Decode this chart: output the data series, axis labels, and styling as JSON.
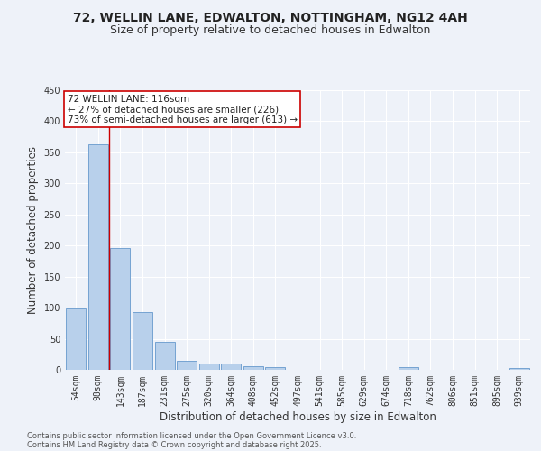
{
  "title1": "72, WELLIN LANE, EDWALTON, NOTTINGHAM, NG12 4AH",
  "title2": "Size of property relative to detached houses in Edwalton",
  "xlabel": "Distribution of detached houses by size in Edwalton",
  "ylabel": "Number of detached properties",
  "categories": [
    "54sqm",
    "98sqm",
    "143sqm",
    "187sqm",
    "231sqm",
    "275sqm",
    "320sqm",
    "364sqm",
    "408sqm",
    "452sqm",
    "497sqm",
    "541sqm",
    "585sqm",
    "629sqm",
    "674sqm",
    "718sqm",
    "762sqm",
    "806sqm",
    "851sqm",
    "895sqm",
    "939sqm"
  ],
  "values": [
    99,
    363,
    196,
    93,
    45,
    14,
    10,
    10,
    6,
    5,
    0,
    0,
    0,
    0,
    0,
    5,
    0,
    0,
    0,
    0,
    3
  ],
  "bar_color": "#b8d0eb",
  "bar_edge_color": "#6699cc",
  "vline_x": 1.5,
  "vline_color": "#cc0000",
  "annotation_line1": "72 WELLIN LANE: 116sqm",
  "annotation_line2": "← 27% of detached houses are smaller (226)",
  "annotation_line3": "73% of semi-detached houses are larger (613) →",
  "annotation_box_color": "#ffffff",
  "annotation_box_edge": "#cc0000",
  "ylim": [
    0,
    450
  ],
  "yticks": [
    0,
    50,
    100,
    150,
    200,
    250,
    300,
    350,
    400,
    450
  ],
  "footer1": "Contains HM Land Registry data © Crown copyright and database right 2025.",
  "footer2": "Contains public sector information licensed under the Open Government Licence v3.0.",
  "bg_color": "#eef2f9",
  "grid_color": "#ffffff",
  "title_fontsize": 10,
  "subtitle_fontsize": 9,
  "axis_label_fontsize": 8.5,
  "tick_fontsize": 7,
  "annotation_fontsize": 7.5,
  "footer_fontsize": 6
}
